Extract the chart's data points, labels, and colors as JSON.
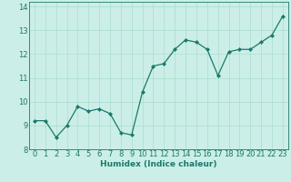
{
  "x": [
    0,
    1,
    2,
    3,
    4,
    5,
    6,
    7,
    8,
    9,
    10,
    11,
    12,
    13,
    14,
    15,
    16,
    17,
    18,
    19,
    20,
    21,
    22,
    23
  ],
  "y": [
    9.2,
    9.2,
    8.5,
    9.0,
    9.8,
    9.6,
    9.7,
    9.5,
    8.7,
    8.6,
    10.4,
    11.5,
    11.6,
    12.2,
    12.6,
    12.5,
    12.2,
    11.1,
    12.1,
    12.2,
    12.2,
    12.5,
    12.8,
    13.6
  ],
  "line_color": "#1a7a6a",
  "marker": "D",
  "marker_size": 2.0,
  "bg_color": "#cceee8",
  "grid_color": "#aaddcc",
  "xlabel": "Humidex (Indice chaleur)",
  "xlim": [
    -0.5,
    23.5
  ],
  "ylim": [
    8.0,
    14.2
  ],
  "yticks": [
    8,
    9,
    10,
    11,
    12,
    13,
    14
  ],
  "xticks": [
    0,
    1,
    2,
    3,
    4,
    5,
    6,
    7,
    8,
    9,
    10,
    11,
    12,
    13,
    14,
    15,
    16,
    17,
    18,
    19,
    20,
    21,
    22,
    23
  ],
  "xlabel_fontsize": 6.5,
  "tick_fontsize": 6.0
}
